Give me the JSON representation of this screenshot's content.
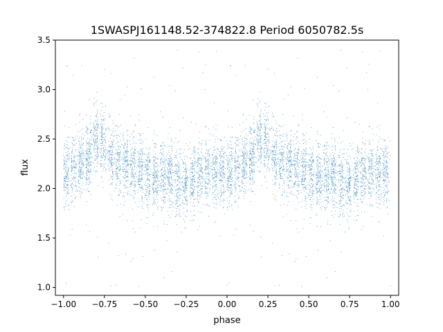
{
  "chart_data": {
    "type": "scatter",
    "title": "1SWASPJ161148.52-374822.8 Period 6050782.5s",
    "xlabel": "phase",
    "ylabel": "flux",
    "xlim": [
      -1.05,
      1.05
    ],
    "ylim": [
      0.92,
      3.5
    ],
    "xticks": [
      -1.0,
      -0.75,
      -0.5,
      -0.25,
      0.0,
      0.25,
      0.5,
      0.75,
      1.0
    ],
    "xtick_labels": [
      "−1.00",
      "−0.75",
      "−0.50",
      "−0.25",
      "0.00",
      "0.25",
      "0.50",
      "0.75",
      "1.00"
    ],
    "yticks": [
      1.0,
      1.5,
      2.0,
      2.5,
      3.0,
      3.5
    ],
    "ytick_labels": [
      "1.0",
      "1.5",
      "2.0",
      "2.5",
      "3.0",
      "3.5"
    ],
    "grid": false,
    "marker_color": "#1f77b4",
    "phase_profile": {
      "phase": [
        0.0,
        0.05,
        0.1,
        0.15,
        0.2,
        0.25,
        0.3,
        0.35,
        0.4,
        0.45,
        0.5,
        0.55,
        0.6,
        0.65,
        0.7,
        0.75,
        0.8,
        0.85,
        0.9,
        0.95,
        1.0
      ],
      "median_flux": [
        2.15,
        2.2,
        2.25,
        2.3,
        2.55,
        2.45,
        2.3,
        2.25,
        2.25,
        2.2,
        2.15,
        2.1,
        2.1,
        2.15,
        2.05,
        2.05,
        2.1,
        2.2,
        2.2,
        2.15,
        2.15
      ],
      "scatter": 0.17,
      "outlier_range": [
        1.0,
        3.4
      ]
    },
    "n_points": 7000
  }
}
